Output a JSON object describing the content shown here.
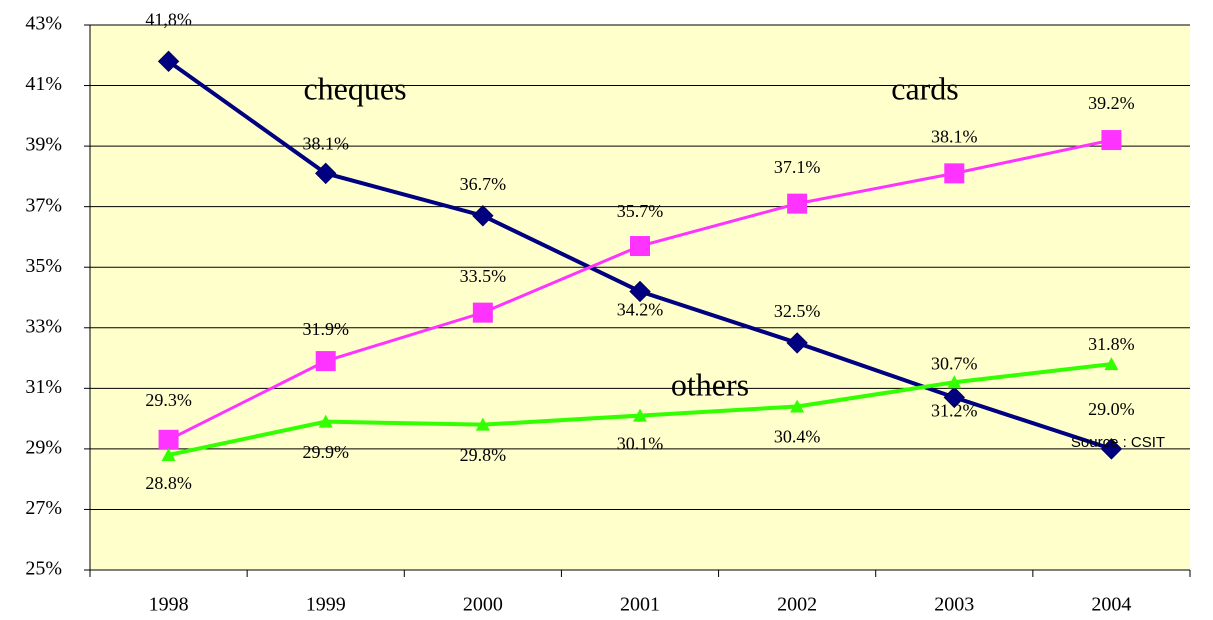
{
  "chart_data": {
    "type": "line",
    "categories": [
      "1998",
      "1999",
      "2000",
      "2001",
      "2002",
      "2003",
      "2004"
    ],
    "series": [
      {
        "name": "cheques",
        "color": "#000080",
        "values": [
          41.8,
          38.1,
          36.7,
          34.2,
          32.5,
          30.7,
          29.0
        ],
        "value_labels": [
          "41,8%",
          "38.1%",
          "36.7%",
          "34.2%",
          "32.5%",
          "30.7%",
          "29.0%"
        ]
      },
      {
        "name": "cards",
        "color": "#ff33ff",
        "values": [
          29.3,
          31.9,
          33.5,
          35.7,
          37.1,
          38.1,
          39.2
        ],
        "value_labels": [
          "29.3%",
          "31.9%",
          "33.5%",
          "35.7%",
          "37.1%",
          "38.1%",
          "39.2%"
        ]
      },
      {
        "name": "others",
        "color": "#33ff00",
        "values": [
          28.8,
          29.9,
          29.8,
          30.1,
          30.4,
          31.2,
          31.8
        ],
        "value_labels": [
          "28.8%",
          "29.9%",
          "29.8%",
          "30.1%",
          "30.4%",
          "31.2%",
          "31.8%"
        ]
      }
    ],
    "annotations": [
      "cheques",
      "cards",
      "others",
      "Source : CSIT"
    ],
    "ylim": [
      25,
      43
    ],
    "yticks": [
      {
        "value": 25,
        "label": "25%"
      },
      {
        "value": 27,
        "label": "27%"
      },
      {
        "value": 29,
        "label": "29%"
      },
      {
        "value": 31,
        "label": "31%"
      },
      {
        "value": 33,
        "label": "33%"
      },
      {
        "value": 35,
        "label": "35%"
      },
      {
        "value": 37,
        "label": "37%"
      },
      {
        "value": 39,
        "label": "39%"
      },
      {
        "value": 41,
        "label": "41%"
      },
      {
        "value": 43,
        "label": "43%"
      }
    ],
    "grid": true,
    "plot_background": "#ffffcc"
  }
}
